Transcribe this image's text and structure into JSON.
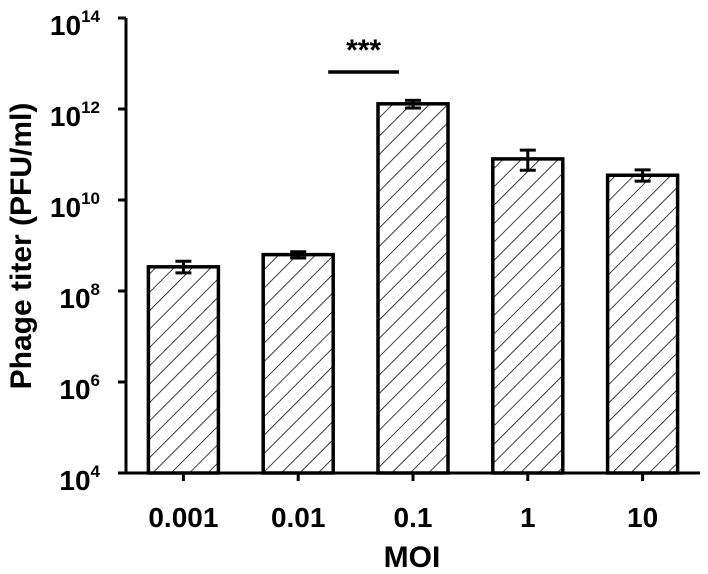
{
  "chart_data": {
    "type": "bar",
    "title": "",
    "xlabel": "MOI",
    "ylabel": "Phage titer (PFU/ml)",
    "y_scale": "log10",
    "ylim": [
      10000,
      100000000000000
    ],
    "y_ticks": [
      {
        "base": "10",
        "exp": "4",
        "value": 10000
      },
      {
        "base": "10",
        "exp": "6",
        "value": 1000000
      },
      {
        "base": "10",
        "exp": "8",
        "value": 100000000
      },
      {
        "base": "10",
        "exp": "10",
        "value": 10000000000
      },
      {
        "base": "10",
        "exp": "12",
        "value": 1000000000000
      },
      {
        "base": "10",
        "exp": "14",
        "value": 100000000000000
      }
    ],
    "categories": [
      "0.001",
      "0.01",
      "0.1",
      "1",
      "10"
    ],
    "values": [
      340000000,
      630000000,
      1300000000000,
      80000000000,
      35000000000
    ],
    "error_low": [
      250000000,
      530000000,
      1050000000000,
      45000000000,
      26000000000
    ],
    "error_high": [
      450000000,
      730000000,
      1550000000000,
      125000000000,
      46000000000
    ],
    "bar_fill": "hatched",
    "grid": false,
    "legend": "none",
    "annotations": [
      {
        "text": "***",
        "from_category": "0.01",
        "to_category": "0.1"
      }
    ]
  }
}
